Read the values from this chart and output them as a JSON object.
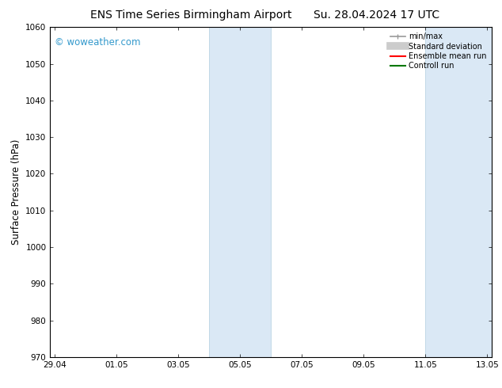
{
  "title_left": "ENS Time Series Birmingham Airport",
  "title_right": "Su. 28.04.2024 17 UTC",
  "ylabel": "Surface Pressure (hPa)",
  "ylim": [
    970,
    1060
  ],
  "yticks": [
    970,
    980,
    990,
    1000,
    1010,
    1020,
    1030,
    1040,
    1050,
    1060
  ],
  "xtick_labels": [
    "29.04",
    "01.05",
    "03.05",
    "05.05",
    "07.05",
    "09.05",
    "11.05",
    "13.05"
  ],
  "xtick_positions": [
    0,
    2,
    4,
    6,
    8,
    10,
    12,
    14
  ],
  "xlim": [
    -0.15,
    14.15
  ],
  "shaded_bands": [
    {
      "x_start": 5.0,
      "x_end": 7.0
    },
    {
      "x_start": 12.0,
      "x_end": 14.15
    }
  ],
  "shaded_color": "#dae8f5",
  "shaded_edge_color": "#b0cfe0",
  "background_color": "#ffffff",
  "plot_bg_color": "#ffffff",
  "watermark": "© woweather.com",
  "watermark_color": "#3399cc",
  "legend_entries": [
    {
      "label": "min/max",
      "color": "#999999",
      "lw": 1.2
    },
    {
      "label": "Standard deviation",
      "color": "#cccccc",
      "lw": 7
    },
    {
      "label": "Ensemble mean run",
      "color": "#ff0000",
      "lw": 1.5
    },
    {
      "label": "Controll run",
      "color": "#007700",
      "lw": 1.5
    }
  ],
  "title_fontsize": 10,
  "tick_fontsize": 7.5,
  "ylabel_fontsize": 8.5,
  "watermark_fontsize": 8.5,
  "legend_fontsize": 7.0
}
